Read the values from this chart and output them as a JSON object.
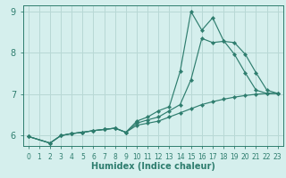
{
  "xlabel": "Humidex (Indice chaleur)",
  "bg_color": "#d5efed",
  "grid_color": "#b8d8d5",
  "line_color": "#2e7d6e",
  "spine_color": "#2e7d6e",
  "xlim": [
    -0.5,
    23.5
  ],
  "ylim": [
    5.75,
    9.15
  ],
  "xticks": [
    0,
    1,
    2,
    3,
    4,
    5,
    6,
    7,
    8,
    9,
    10,
    11,
    12,
    13,
    14,
    15,
    16,
    17,
    18,
    19,
    20,
    21,
    22,
    23
  ],
  "yticks": [
    6,
    7,
    8,
    9
  ],
  "series": [
    {
      "x": [
        0,
        2,
        3,
        4,
        5,
        6,
        7,
        8,
        9,
        10,
        11,
        12,
        13,
        14,
        15,
        16,
        17,
        18,
        19,
        20,
        21,
        22,
        23
      ],
      "y": [
        5.98,
        5.82,
        6.0,
        6.05,
        6.08,
        6.12,
        6.15,
        6.18,
        6.08,
        6.25,
        6.3,
        6.35,
        6.45,
        6.55,
        6.65,
        6.75,
        6.82,
        6.88,
        6.93,
        6.97,
        7.0,
        7.02,
        7.02
      ]
    },
    {
      "x": [
        0,
        2,
        3,
        4,
        5,
        6,
        7,
        8,
        9,
        10,
        11,
        12,
        13,
        14,
        15,
        16,
        17,
        18,
        19,
        20,
        21,
        22,
        23
      ],
      "y": [
        5.98,
        5.82,
        6.0,
        6.05,
        6.08,
        6.12,
        6.15,
        6.18,
        6.08,
        6.3,
        6.38,
        6.45,
        6.6,
        6.75,
        7.35,
        8.35,
        8.25,
        8.28,
        8.25,
        7.97,
        7.52,
        7.1,
        7.02
      ]
    },
    {
      "x": [
        0,
        2,
        3,
        4,
        5,
        6,
        7,
        8,
        9,
        10,
        11,
        12,
        13,
        14,
        15,
        16,
        17,
        18,
        19,
        20,
        21,
        22,
        23
      ],
      "y": [
        5.98,
        5.82,
        6.0,
        6.05,
        6.08,
        6.12,
        6.15,
        6.18,
        6.08,
        6.35,
        6.45,
        6.6,
        6.7,
        7.55,
        9.0,
        8.55,
        8.85,
        8.3,
        7.97,
        7.52,
        7.1,
        7.02,
        7.02
      ]
    }
  ]
}
